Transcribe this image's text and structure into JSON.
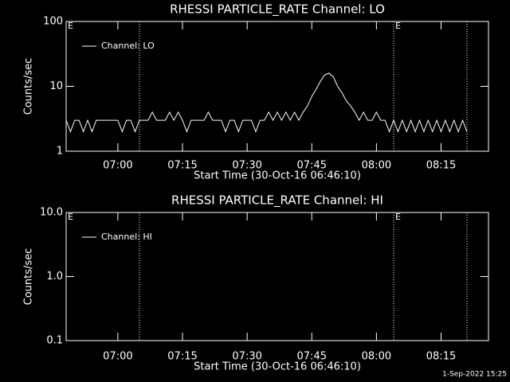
{
  "chart_data": [
    {
      "type": "line",
      "title": "RHESSI PARTICLE_RATE Channel: LO",
      "xlabel": "Start Time (30-Oct-16 06:46:10)",
      "ylabel": "Counts/sec",
      "log_y": true,
      "xlim": [
        "06:48",
        "08:26"
      ],
      "xticks": [
        "07:00",
        "07:15",
        "07:30",
        "07:45",
        "08:00",
        "08:15"
      ],
      "ylim": [
        1,
        100
      ],
      "yticks": [
        1,
        10,
        100
      ],
      "vlines": [
        "07:05",
        "08:04",
        "08:21"
      ],
      "annotations": [
        {
          "x": "06:48",
          "text": "E"
        },
        {
          "x": "08:04",
          "text": "E"
        }
      ],
      "legend": "top-left",
      "x": [
        "06:48",
        "06:49",
        "06:50",
        "06:51",
        "06:52",
        "06:53",
        "06:54",
        "06:55",
        "06:56",
        "06:57",
        "06:58",
        "06:59",
        "07:00",
        "07:01",
        "07:02",
        "07:03",
        "07:04",
        "07:05",
        "07:06",
        "07:07",
        "07:08",
        "07:09",
        "07:10",
        "07:11",
        "07:12",
        "07:13",
        "07:14",
        "07:15",
        "07:16",
        "07:17",
        "07:18",
        "07:19",
        "07:20",
        "07:21",
        "07:22",
        "07:23",
        "07:24",
        "07:25",
        "07:26",
        "07:27",
        "07:28",
        "07:29",
        "07:30",
        "07:31",
        "07:32",
        "07:33",
        "07:34",
        "07:35",
        "07:36",
        "07:37",
        "07:38",
        "07:39",
        "07:40",
        "07:41",
        "07:42",
        "07:43",
        "07:44",
        "07:45",
        "07:46",
        "07:47",
        "07:48",
        "07:49",
        "07:50",
        "07:51",
        "07:52",
        "07:53",
        "07:54",
        "07:55",
        "07:56",
        "07:57",
        "07:58",
        "07:59",
        "08:00",
        "08:01",
        "08:02",
        "08:03",
        "08:04",
        "08:05",
        "08:06",
        "08:07",
        "08:08",
        "08:09",
        "08:10",
        "08:11",
        "08:12",
        "08:13",
        "08:14",
        "08:15",
        "08:16",
        "08:17",
        "08:18",
        "08:19",
        "08:20",
        "08:21"
      ],
      "series": [
        {
          "name": "Channel: LO",
          "color": "#ffffff",
          "values": [
            3,
            2,
            3,
            3,
            2,
            3,
            2,
            3,
            3,
            3,
            3,
            3,
            3,
            2,
            3,
            3,
            2,
            3,
            3,
            3,
            4,
            3,
            3,
            3,
            4,
            3,
            4,
            3,
            2,
            3,
            3,
            3,
            3,
            4,
            3,
            3,
            3,
            2,
            3,
            3,
            2,
            3,
            3,
            3,
            2,
            3,
            3,
            4,
            3,
            4,
            3,
            4,
            3,
            4,
            3,
            4,
            5,
            7,
            9,
            12,
            15,
            16,
            14,
            10,
            8,
            6,
            5,
            4,
            3,
            4,
            3,
            3,
            4,
            3,
            3,
            2,
            3,
            2,
            3,
            2,
            3,
            2,
            3,
            2,
            3,
            2,
            3,
            2,
            3,
            2,
            3,
            2,
            3,
            2
          ]
        }
      ]
    },
    {
      "type": "line",
      "title": "RHESSI PARTICLE_RATE Channel: HI",
      "xlabel": "Start Time (30-Oct-16 06:46:10)",
      "ylabel": "Counts/sec",
      "log_y": true,
      "xlim": [
        "06:48",
        "08:26"
      ],
      "xticks": [
        "07:00",
        "07:15",
        "07:30",
        "07:45",
        "08:00",
        "08:15"
      ],
      "ylim": [
        0.1,
        10
      ],
      "yticks": [
        0.1,
        {
          "value": 1,
          "label": "1.0"
        },
        {
          "value": 10,
          "label": "10.0"
        }
      ],
      "vlines": [
        "07:05",
        "08:04",
        "08:21"
      ],
      "annotations": [
        {
          "x": "06:48",
          "text": "E"
        },
        {
          "x": "08:04",
          "text": "E"
        }
      ],
      "legend": "top-left",
      "x": [],
      "series": [
        {
          "name": "Channel: HI",
          "color": "#ffffff",
          "values": []
        }
      ]
    }
  ],
  "footer": "1-Sep-2022 15:25"
}
